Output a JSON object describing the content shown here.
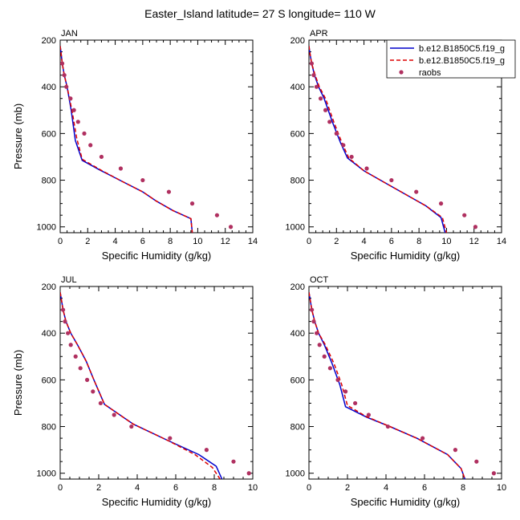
{
  "title": "Easter_Island  latitude= 27 S longitude= 110 W",
  "colors": {
    "model1": "#0000cc",
    "model2": "#dd0000",
    "obs": "#b03060"
  },
  "legend": {
    "items": [
      {
        "label": "b.e12.B1850C5.f19_g",
        "style": "solid",
        "color": "#0000cc"
      },
      {
        "label": "b.e12.B1850C5.f19_g",
        "style": "dashed",
        "color": "#dd0000"
      },
      {
        "label": "raobs",
        "style": "dot",
        "color": "#b03060"
      }
    ]
  },
  "chart_data": [
    {
      "type": "line",
      "panel_label": "JAN",
      "xlabel": "Specific Humidity (g/kg)",
      "ylabel": "Pressure (mb)",
      "xlim": [
        0,
        14
      ],
      "ylim": [
        200,
        1025
      ],
      "y_inverted": true,
      "xticks": [
        0,
        2,
        4,
        6,
        8,
        10,
        12,
        14
      ],
      "yticks": [
        200,
        400,
        600,
        800,
        1000
      ],
      "series": [
        {
          "name": "b.e12.B1850C5.f19_g",
          "style": "solid",
          "x": [
            0.0,
            0.05,
            0.15,
            0.3,
            0.5,
            0.8,
            1.1,
            1.6,
            3.0,
            4.5,
            6.0,
            7.0,
            8.2,
            9.5,
            9.6
          ],
          "y": [
            225,
            250,
            300,
            350,
            400,
            500,
            630,
            715,
            760,
            805,
            850,
            890,
            930,
            965,
            1025
          ]
        },
        {
          "name": "b.e12.B1850C5.f19_g",
          "style": "dashed",
          "x": [
            0.0,
            0.05,
            0.15,
            0.3,
            0.5,
            0.85,
            1.2,
            1.6,
            3.0,
            4.5,
            6.0,
            7.0,
            8.2,
            9.5,
            9.6
          ],
          "y": [
            225,
            250,
            300,
            350,
            400,
            500,
            620,
            710,
            758,
            805,
            850,
            890,
            930,
            965,
            1025
          ]
        },
        {
          "name": "raobs",
          "style": "dot",
          "x": [
            0.15,
            0.3,
            0.45,
            0.75,
            1.0,
            1.3,
            1.75,
            2.2,
            3.0,
            4.4,
            6.0,
            7.9,
            9.6,
            11.4,
            12.4
          ],
          "y": [
            300,
            350,
            400,
            450,
            500,
            550,
            600,
            650,
            700,
            750,
            800,
            850,
            900,
            950,
            1000
          ]
        }
      ]
    },
    {
      "type": "line",
      "panel_label": "APR",
      "xlabel": "Specific Humidity (g/kg)",
      "ylabel": "",
      "xlim": [
        0,
        14
      ],
      "ylim": [
        200,
        1025
      ],
      "y_inverted": true,
      "xticks": [
        0,
        2,
        4,
        6,
        8,
        10,
        12,
        14
      ],
      "yticks": [
        200,
        400,
        600,
        800,
        1000
      ],
      "series": [
        {
          "name": "b.e12.B1850C5.f19_g",
          "style": "solid",
          "x": [
            0.0,
            0.05,
            0.2,
            0.4,
            0.7,
            1.1,
            1.7,
            2.3,
            2.8,
            4.0,
            5.5,
            7.0,
            8.5,
            9.6,
            9.9
          ],
          "y": [
            225,
            250,
            300,
            350,
            400,
            450,
            550,
            640,
            705,
            760,
            810,
            860,
            910,
            960,
            1025
          ]
        },
        {
          "name": "b.e12.B1850C5.f19_g",
          "style": "dashed",
          "x": [
            0.0,
            0.05,
            0.2,
            0.45,
            0.75,
            1.2,
            1.8,
            2.4,
            2.9,
            4.0,
            5.5,
            7.0,
            8.5,
            9.7,
            10.0
          ],
          "y": [
            225,
            250,
            300,
            350,
            400,
            450,
            550,
            640,
            705,
            760,
            810,
            860,
            910,
            960,
            1025
          ]
        },
        {
          "name": "raobs",
          "style": "dot",
          "x": [
            0.2,
            0.35,
            0.55,
            0.85,
            1.2,
            1.5,
            2.0,
            2.5,
            3.1,
            4.2,
            6.0,
            7.8,
            9.6,
            11.3,
            12.1
          ],
          "y": [
            300,
            350,
            400,
            450,
            500,
            550,
            600,
            650,
            700,
            750,
            800,
            850,
            900,
            950,
            1000
          ]
        }
      ]
    },
    {
      "type": "line",
      "panel_label": "JUL",
      "xlabel": "Specific Humidity (g/kg)",
      "ylabel": "Pressure (mb)",
      "xlim": [
        0,
        10
      ],
      "ylim": [
        200,
        1025
      ],
      "y_inverted": true,
      "xticks": [
        0,
        2,
        4,
        6,
        8,
        10
      ],
      "yticks": [
        200,
        400,
        600,
        800,
        1000
      ],
      "series": [
        {
          "name": "b.e12.B1850C5.f19_g",
          "style": "solid",
          "x": [
            0.0,
            0.05,
            0.15,
            0.3,
            0.55,
            0.9,
            1.35,
            1.75,
            2.3,
            3.8,
            5.6,
            7.2,
            8.1,
            8.4
          ],
          "y": [
            225,
            250,
            300,
            350,
            400,
            450,
            520,
            600,
            705,
            790,
            860,
            920,
            970,
            1025
          ]
        },
        {
          "name": "b.e12.B1850C5.f19_g",
          "style": "dashed",
          "x": [
            0.0,
            0.05,
            0.15,
            0.3,
            0.55,
            0.9,
            1.35,
            1.75,
            2.3,
            3.8,
            5.6,
            7.0,
            7.9,
            8.3
          ],
          "y": [
            225,
            250,
            300,
            350,
            400,
            450,
            520,
            600,
            705,
            790,
            860,
            920,
            975,
            1025
          ]
        },
        {
          "name": "raobs",
          "style": "dot",
          "x": [
            0.15,
            0.25,
            0.4,
            0.55,
            0.8,
            1.05,
            1.4,
            1.7,
            2.1,
            2.8,
            3.7,
            5.7,
            7.6,
            9.0,
            9.8
          ],
          "y": [
            300,
            350,
            400,
            450,
            500,
            550,
            600,
            650,
            700,
            750,
            800,
            850,
            900,
            950,
            1000
          ]
        }
      ]
    },
    {
      "type": "line",
      "panel_label": "OCT",
      "xlabel": "Specific Humidity (g/kg)",
      "ylabel": "",
      "xlim": [
        0,
        10
      ],
      "ylim": [
        200,
        1025
      ],
      "y_inverted": true,
      "xticks": [
        0,
        2,
        4,
        6,
        8,
        10
      ],
      "yticks": [
        200,
        400,
        600,
        800,
        1000
      ],
      "series": [
        {
          "name": "b.e12.B1850C5.f19_g",
          "style": "solid",
          "x": [
            0.0,
            0.05,
            0.15,
            0.3,
            0.5,
            0.8,
            1.2,
            1.6,
            1.9,
            3.0,
            4.2,
            5.6,
            7.2,
            7.9,
            8.1
          ],
          "y": [
            225,
            250,
            300,
            350,
            400,
            450,
            530,
            620,
            715,
            760,
            800,
            850,
            920,
            980,
            1025
          ]
        },
        {
          "name": "b.e12.B1850C5.f19_g",
          "style": "dashed",
          "x": [
            0.0,
            0.05,
            0.15,
            0.3,
            0.5,
            0.85,
            1.3,
            1.7,
            2.0,
            3.0,
            4.2,
            5.6,
            7.2,
            7.9,
            8.1
          ],
          "y": [
            225,
            250,
            300,
            350,
            400,
            450,
            530,
            620,
            710,
            758,
            800,
            850,
            920,
            980,
            1025
          ]
        },
        {
          "name": "raobs",
          "style": "dot",
          "x": [
            0.15,
            0.25,
            0.4,
            0.55,
            0.8,
            1.1,
            1.5,
            1.9,
            2.4,
            3.1,
            4.1,
            5.9,
            7.6,
            8.7,
            9.6
          ],
          "y": [
            300,
            350,
            400,
            450,
            500,
            550,
            600,
            650,
            700,
            750,
            800,
            850,
            900,
            950,
            1000
          ]
        }
      ]
    }
  ]
}
